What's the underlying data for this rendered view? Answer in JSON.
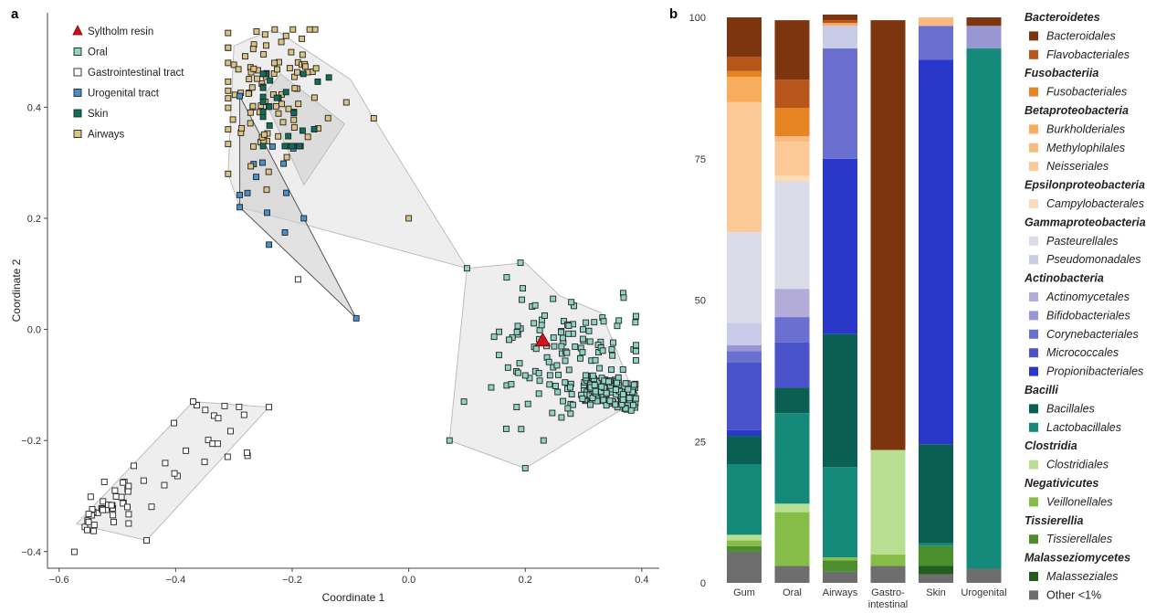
{
  "panel_a_label": "a",
  "panel_b_label": "b",
  "colors": {
    "oral": "#8fd3c4",
    "gi": "#ffffff",
    "urogenital": "#4a90c8",
    "skin": "#0e6e5c",
    "airways": "#dcc283",
    "resin": "#d0101a",
    "hull_fill": "#ebebeb",
    "hull_stroke": "#bdbdbd"
  },
  "chart_data": [
    {
      "type": "scatter",
      "panel": "a",
      "xlabel": "Coordinate 1",
      "ylabel": "Coordinate 2",
      "xlim": [
        -0.62,
        0.43
      ],
      "ylim": [
        -0.43,
        0.57
      ],
      "xticks": [
        -0.6,
        -0.4,
        -0.2,
        0.0,
        0.2,
        0.4
      ],
      "xtick_labels": [
        "−0.6",
        "−0.4",
        "−0.2",
        "0.0",
        "0.2",
        "0.4"
      ],
      "yticks": [
        -0.4,
        -0.2,
        0.0,
        0.2,
        0.4
      ],
      "ytick_labels": [
        "−0.4",
        "−0.2",
        "0.0",
        "0.2",
        "0.4"
      ],
      "legend": [
        {
          "name": "Syltholm resin",
          "key": "resin",
          "marker": "triangle"
        },
        {
          "name": "Oral",
          "key": "oral",
          "marker": "square"
        },
        {
          "name": "Gastrointestinal tract",
          "key": "gi",
          "marker": "square"
        },
        {
          "name": "Urogenital tract",
          "key": "urogenital",
          "marker": "square"
        },
        {
          "name": "Skin",
          "key": "skin",
          "marker": "square"
        },
        {
          "name": "Airways",
          "key": "airways",
          "marker": "square"
        }
      ],
      "resin_point": [
        0.23,
        -0.02
      ],
      "hulls": {
        "oral": [
          [
            0.1,
            0.11
          ],
          [
            0.2,
            0.12
          ],
          [
            0.26,
            0.06
          ],
          [
            0.33,
            0.03
          ],
          [
            0.35,
            -0.02
          ],
          [
            0.38,
            -0.1
          ],
          [
            0.39,
            -0.13
          ],
          [
            0.34,
            -0.16
          ],
          [
            0.2,
            -0.25
          ],
          [
            0.07,
            -0.2
          ],
          [
            0.1,
            0.11
          ]
        ],
        "gi": [
          [
            -0.57,
            -0.35
          ],
          [
            -0.45,
            -0.38
          ],
          [
            -0.24,
            -0.14
          ],
          [
            -0.37,
            -0.13
          ],
          [
            -0.57,
            -0.35
          ]
        ],
        "airways": [
          [
            -0.28,
            0.52
          ],
          [
            -0.23,
            0.54
          ],
          [
            -0.1,
            0.45
          ],
          [
            -0.06,
            0.38
          ],
          [
            0.1,
            0.11
          ],
          [
            -0.29,
            0.22
          ],
          [
            -0.31,
            0.28
          ],
          [
            -0.3,
            0.51
          ],
          [
            -0.28,
            0.52
          ]
        ],
        "skin": [
          [
            -0.25,
            0.42
          ],
          [
            -0.22,
            0.46
          ],
          [
            -0.11,
            0.37
          ],
          [
            -0.18,
            0.26
          ],
          [
            -0.25,
            0.42
          ]
        ],
        "uro": [
          [
            -0.29,
            0.42
          ],
          [
            -0.09,
            0.02
          ],
          [
            -0.29,
            0.22
          ],
          [
            -0.29,
            0.42
          ]
        ]
      },
      "clusters": {
        "oral": {
          "n": 250,
          "cx": 0.27,
          "cy": -0.05,
          "sx": 0.07,
          "sy": 0.06
        },
        "gi": {
          "n": 62,
          "cx": -0.47,
          "cy": -0.26,
          "sx": 0.07,
          "sy": 0.06
        },
        "urogenital": {
          "n": 12,
          "cx": -0.24,
          "cy": 0.26,
          "sx": 0.03,
          "sy": 0.07
        },
        "skin": {
          "n": 30,
          "cx": -0.22,
          "cy": 0.4,
          "sx": 0.04,
          "sy": 0.05
        },
        "airways": {
          "n": 95,
          "cx": -0.23,
          "cy": 0.43,
          "sx": 0.05,
          "sy": 0.06
        }
      }
    },
    {
      "type": "bar",
      "panel": "b",
      "stacked": true,
      "ylim": [
        0,
        100
      ],
      "yticks": [
        0,
        25,
        50,
        75,
        100
      ],
      "categories": [
        "Gum",
        "Oral",
        "Airways",
        "Gastro-\nintestinal",
        "Skin",
        "Urogenital"
      ],
      "series": [
        {
          "name": "Other <1%",
          "color": "#6e6e6e",
          "values": [
            5.5,
            3,
            2,
            3,
            1.5,
            2.5
          ]
        },
        {
          "name": "Malasseziales",
          "color": "#225c1e",
          "values": [
            0,
            0,
            0,
            0,
            1.5,
            0
          ]
        },
        {
          "name": "Tissierellales",
          "color": "#4a8f2b",
          "values": [
            1,
            0,
            2,
            0,
            3.5,
            0
          ]
        },
        {
          "name": "Veillonellales",
          "color": "#86bd48",
          "values": [
            1,
            9.5,
            0.5,
            2,
            0,
            0
          ]
        },
        {
          "name": "Clostridiales",
          "color": "#b9df93",
          "values": [
            1,
            1.5,
            0,
            18.5,
            0,
            0
          ]
        },
        {
          "name": "Lactobacillales",
          "color": "#168a7a",
          "values": [
            12.5,
            16,
            16,
            0,
            0.5,
            92
          ]
        },
        {
          "name": "Bacillales",
          "color": "#0b5e52",
          "values": [
            5,
            4.5,
            23.5,
            0,
            17.5,
            0
          ]
        },
        {
          "name": "Propionibacteriales",
          "color": "#2a38c9",
          "values": [
            1,
            0,
            31,
            0,
            68,
            0
          ]
        },
        {
          "name": "Micrococcales",
          "color": "#4a53c9",
          "values": [
            12,
            8,
            0,
            0,
            0,
            0
          ]
        },
        {
          "name": "Corynebacteriales",
          "color": "#6b70d0",
          "values": [
            2,
            4.5,
            19.5,
            0,
            6,
            0
          ]
        },
        {
          "name": "Bifidobacteriales",
          "color": "#9897d4",
          "values": [
            1,
            0,
            0,
            0,
            0,
            4
          ]
        },
        {
          "name": "Actinomycetales",
          "color": "#b3acd8",
          "values": [
            0,
            5,
            0,
            0,
            0,
            0
          ]
        },
        {
          "name": "Pseudomonadales",
          "color": "#c8cce8",
          "values": [
            4,
            0,
            4,
            0,
            0,
            0
          ]
        },
        {
          "name": "Pasteurellales",
          "color": "#dadde8",
          "values": [
            16,
            19,
            0,
            0,
            0,
            0
          ]
        },
        {
          "name": "Campylobacterales",
          "color": "#fbdcb6",
          "values": [
            0,
            1,
            0,
            0,
            0,
            0
          ]
        },
        {
          "name": "Neisseriales",
          "color": "#fbc896",
          "values": [
            23,
            6,
            0,
            0,
            0,
            0
          ]
        },
        {
          "name": "Methylophilales",
          "color": "#f9ba80",
          "values": [
            0,
            1,
            0,
            0,
            1.5,
            0
          ]
        },
        {
          "name": "Burkholderiales",
          "color": "#f8ac5e",
          "values": [
            4.5,
            0,
            0.5,
            0,
            0,
            0
          ]
        },
        {
          "name": "Fusobacteriales",
          "color": "#e68424",
          "values": [
            1,
            5,
            0,
            0,
            0,
            0
          ]
        },
        {
          "name": "Flavobacteriales",
          "color": "#b7561a",
          "values": [
            2.5,
            5,
            0.5,
            0,
            0,
            0
          ]
        },
        {
          "name": "Bacteroidales",
          "color": "#7d350f",
          "values": [
            7,
            10.5,
            1,
            76,
            0,
            1.5
          ]
        }
      ]
    }
  ],
  "legend_b": [
    {
      "type": "class",
      "label": "Bacteroidetes"
    },
    {
      "type": "order",
      "label": "Bacteroidales",
      "color": "#7d350f"
    },
    {
      "type": "order",
      "label": "Flavobacteriales",
      "color": "#b7561a"
    },
    {
      "type": "class",
      "label": "Fusobacteriia"
    },
    {
      "type": "order",
      "label": "Fusobacteriales",
      "color": "#e68424"
    },
    {
      "type": "class",
      "label": "Betaproteobacteria"
    },
    {
      "type": "order",
      "label": "Burkholderiales",
      "color": "#f8ac5e"
    },
    {
      "type": "order",
      "label": "Methylophilales",
      "color": "#f9ba80"
    },
    {
      "type": "order",
      "label": "Neisseriales",
      "color": "#fbc896"
    },
    {
      "type": "class",
      "label": "Epsilonproteobacteria"
    },
    {
      "type": "order",
      "label": "Campylobacterales",
      "color": "#fbdcb6"
    },
    {
      "type": "class",
      "label": "Gammaproteobacteria"
    },
    {
      "type": "order",
      "label": "Pasteurellales",
      "color": "#dadde8"
    },
    {
      "type": "order",
      "label": "Pseudomonadales",
      "color": "#c8cce8"
    },
    {
      "type": "class",
      "label": "Actinobacteria"
    },
    {
      "type": "order",
      "label": "Actinomycetales",
      "color": "#b3acd8"
    },
    {
      "type": "order",
      "label": "Bifidobacteriales",
      "color": "#9897d4"
    },
    {
      "type": "order",
      "label": "Corynebacteriales",
      "color": "#6b70d0"
    },
    {
      "type": "order",
      "label": "Micrococcales",
      "color": "#4a53c9"
    },
    {
      "type": "order",
      "label": "Propionibacteriales",
      "color": "#2a38c9"
    },
    {
      "type": "class",
      "label": "Bacilli"
    },
    {
      "type": "order",
      "label": "Bacillales",
      "color": "#0b5e52"
    },
    {
      "type": "order",
      "label": "Lactobacillales",
      "color": "#168a7a"
    },
    {
      "type": "class",
      "label": "Clostridia"
    },
    {
      "type": "order",
      "label": "Clostridiales",
      "color": "#b9df93"
    },
    {
      "type": "class",
      "label": "Negativicutes"
    },
    {
      "type": "order",
      "label": "Veillonellales",
      "color": "#86bd48"
    },
    {
      "type": "class",
      "label": "Tissierellia"
    },
    {
      "type": "order",
      "label": "Tissierellales",
      "color": "#4a8f2b"
    },
    {
      "type": "class",
      "label": "Malasseziomycetes"
    },
    {
      "type": "order",
      "label": "Malasseziales",
      "color": "#225c1e"
    },
    {
      "type": "order",
      "label": "Other <1%",
      "color": "#6e6e6e",
      "plain": true
    }
  ]
}
